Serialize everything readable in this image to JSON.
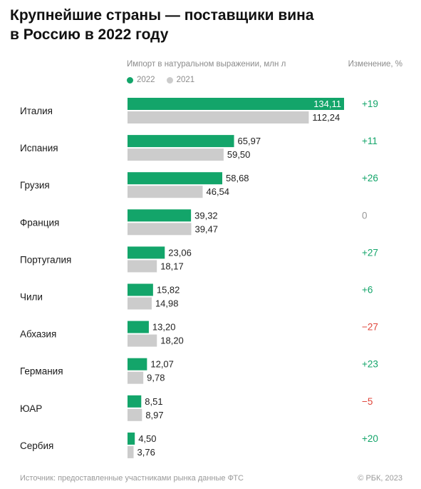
{
  "title_lines": [
    "Крупнейшие страны — поставщики вина",
    "в Россию в 2022 году"
  ],
  "header": {
    "import_label": "Импорт в натуральном выражении, млн л",
    "change_label": "Изменение, %"
  },
  "legend": [
    {
      "label": "2022",
      "color": "#13a56a"
    },
    {
      "label": "2021",
      "color": "#cccccc"
    }
  ],
  "colors": {
    "positive": "#13a56a",
    "negative": "#e0453a",
    "neutral": "#999999"
  },
  "footer": {
    "source": "Источник: предоставленные участниками рынка данные ФТС",
    "copyright": "© РБК, 2023"
  },
  "chart_data": {
    "type": "bar",
    "orientation": "horizontal",
    "categories": [
      "Италия",
      "Испания",
      "Грузия",
      "Франция",
      "Португалия",
      "Чили",
      "Абхазия",
      "Германия",
      "ЮАР",
      "Сербия"
    ],
    "series": [
      {
        "name": "2022",
        "values": [
          134.11,
          65.97,
          58.68,
          39.32,
          23.06,
          15.82,
          13.2,
          12.07,
          8.51,
          4.5
        ],
        "labels": [
          "134,11",
          "65,97",
          "58,68",
          "39,32",
          "23,06",
          "15,82",
          "13,20",
          "12,07",
          "8,51",
          "4,50"
        ]
      },
      {
        "name": "2021",
        "values": [
          112.24,
          59.5,
          46.54,
          39.47,
          18.17,
          14.98,
          18.2,
          9.78,
          8.97,
          3.76
        ],
        "labels": [
          "112,24",
          "59,50",
          "46,54",
          "39,47",
          "18,17",
          "14,98",
          "18,20",
          "9,78",
          "8,97",
          "3,76"
        ]
      }
    ],
    "change": [
      "+19",
      "+11",
      "+26",
      "0",
      "+27",
      "+6",
      "−27",
      "+23",
      "−5",
      "+20"
    ],
    "xlim": [
      0,
      134.11
    ]
  }
}
